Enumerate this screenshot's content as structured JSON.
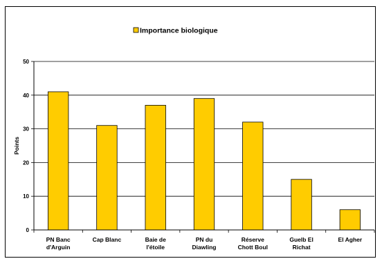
{
  "chart_data": {
    "type": "bar",
    "categories": [
      [
        "PN Banc",
        "d'Arguin"
      ],
      [
        "Cap Blanc"
      ],
      [
        "Baie de",
        "l'étoile"
      ],
      [
        "PN du",
        "Diawling"
      ],
      [
        "Réserve",
        "Chott Boul"
      ],
      [
        "Guelb El",
        "Richat"
      ],
      [
        "El Agher"
      ]
    ],
    "series": [
      {
        "name": "Importance biologique",
        "values": [
          41,
          31,
          37,
          39,
          32,
          15,
          6
        ],
        "color": "#FFCC00"
      }
    ],
    "title": "",
    "xlabel": "",
    "ylabel": "Points",
    "ylim": [
      0,
      50
    ],
    "yticks": [
      0,
      10,
      20,
      30,
      40,
      50
    ],
    "grid": true,
    "legend": "top"
  }
}
